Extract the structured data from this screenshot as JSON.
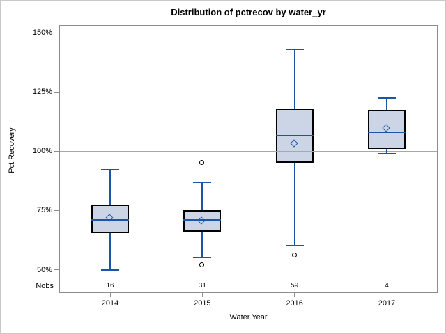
{
  "colors": {
    "box_fill": "#ccd5e5",
    "box_border": "#000000",
    "line": "#1c55a8",
    "outlier": "#000000",
    "reference_line": "#a8a8a8",
    "frame": "#8c8c8c",
    "text": "#000000",
    "outer_border": "#c9c9c9"
  },
  "chart_data": {
    "type": "boxplot",
    "title": "Distribution of pctrecov by water_yr",
    "xlabel": "Water Year",
    "ylabel": "Pct Recovery",
    "nobs_label": "Nobs",
    "ylim": [
      40,
      153.5
    ],
    "grid": false,
    "reference_line": 100,
    "y_ticks": [
      {
        "label": "150%",
        "value": 150
      },
      {
        "label": "125%",
        "value": 125
      },
      {
        "label": "100%",
        "value": 100
      },
      {
        "label": "75%",
        "value": 75
      },
      {
        "label": "50%",
        "value": 50
      }
    ],
    "categories": [
      "2014",
      "2015",
      "2016",
      "2017"
    ],
    "series": [
      {
        "category": "2014",
        "nobs": 16,
        "whisker_low": 50,
        "q1": 65.5,
        "median": 71,
        "mean": 71.5,
        "q3": 77.5,
        "whisker_high": 92,
        "outliers": []
      },
      {
        "category": "2015",
        "nobs": 31,
        "whisker_low": 55,
        "q1": 66,
        "median": 71,
        "mean": 70.5,
        "q3": 75,
        "whisker_high": 87,
        "outliers": [
          95,
          52
        ]
      },
      {
        "category": "2016",
        "nobs": 59,
        "whisker_low": 60,
        "q1": 95,
        "median": 106.5,
        "mean": 103,
        "q3": 118,
        "whisker_high": 143,
        "outliers": [
          56
        ]
      },
      {
        "category": "2017",
        "nobs": 4,
        "whisker_low": 99,
        "q1": 101,
        "median": 108,
        "mean": 109.5,
        "q3": 117.5,
        "whisker_high": 122.5,
        "outliers": []
      }
    ]
  }
}
